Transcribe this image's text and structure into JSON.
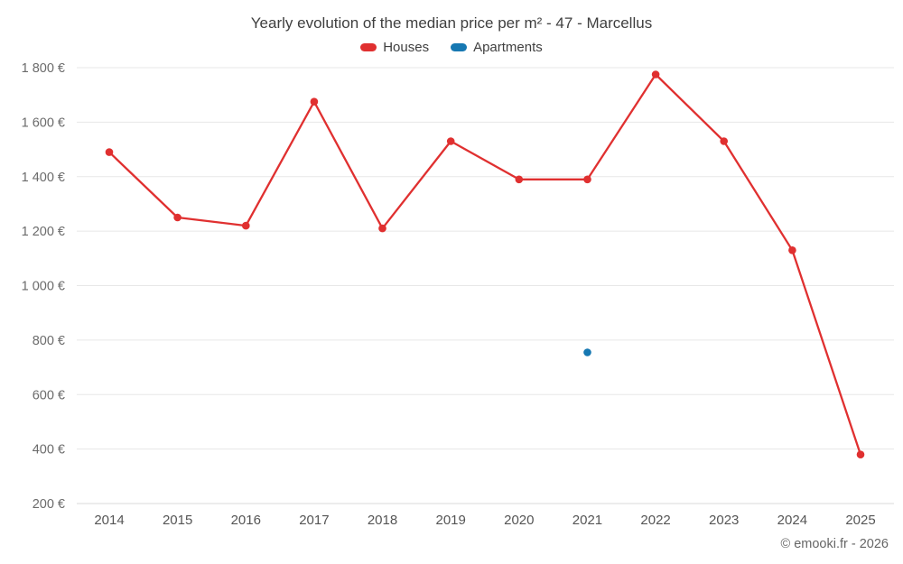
{
  "title": "Yearly evolution of the median price per m² - 47 - Marcellus",
  "footer": "© emooki.fr - 2026",
  "legend": [
    {
      "label": "Houses",
      "color": "#e03030"
    },
    {
      "label": "Apartments",
      "color": "#1678b2"
    }
  ],
  "colors": {
    "grid": "#e7e7e7",
    "axis": "#d9d9d9",
    "tick_label": "#6b6b6b",
    "x_label": "#555555"
  },
  "chart_data": {
    "type": "line",
    "title": "Yearly evolution of the median price per m² - 47 - Marcellus",
    "x": [
      2014,
      2015,
      2016,
      2017,
      2018,
      2019,
      2020,
      2021,
      2022,
      2023,
      2024,
      2025
    ],
    "series": [
      {
        "name": "Houses",
        "color": "#e03030",
        "values": [
          1490,
          1250,
          1220,
          1675,
          1210,
          1530,
          1390,
          1390,
          1775,
          1530,
          1130,
          380
        ]
      },
      {
        "name": "Apartments",
        "color": "#1678b2",
        "values": [
          null,
          null,
          null,
          null,
          null,
          null,
          null,
          755,
          null,
          null,
          null,
          null
        ]
      }
    ],
    "ylim": [
      200,
      1800
    ],
    "ytick_step": 200,
    "ytick_suffix": " €",
    "grid": true,
    "legend_position": "top"
  }
}
